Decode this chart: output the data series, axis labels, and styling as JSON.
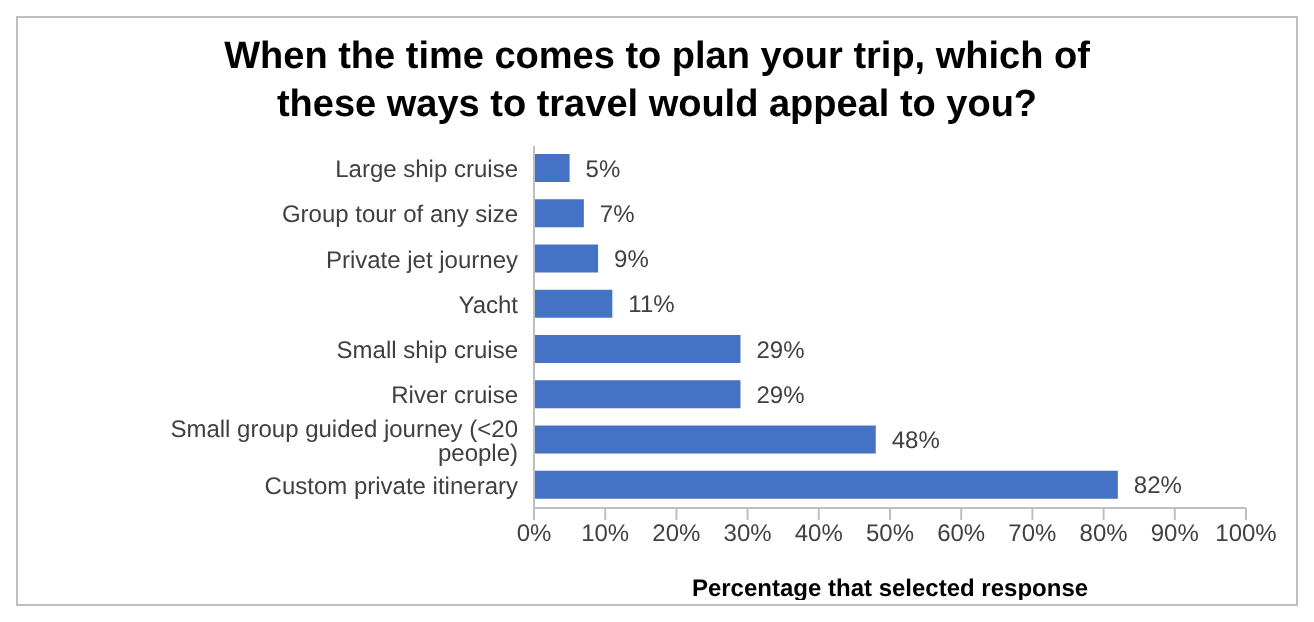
{
  "chart_data": {
    "type": "bar",
    "orientation": "horizontal",
    "title": "When the time comes to plan your trip, which of these ways to travel would appeal to you?",
    "xlabel": "Percentage that selected response",
    "categories": [
      "Large ship cruise",
      "Group tour of any size",
      "Private jet journey",
      "Yacht",
      "Small ship cruise",
      "River cruise",
      "Small group guided journey (<20 people)",
      "Custom private itinerary"
    ],
    "values": [
      5,
      7,
      9,
      11,
      29,
      29,
      48,
      82
    ],
    "value_labels": [
      "5%",
      "7%",
      "9%",
      "11%",
      "29%",
      "29%",
      "48%",
      "82%"
    ],
    "color": "#4472c4",
    "xlim": [
      0,
      100
    ],
    "xticks": [
      {
        "value": 0,
        "label": "0%"
      },
      {
        "value": 10,
        "label": "10%"
      },
      {
        "value": 20,
        "label": "20%"
      },
      {
        "value": 30,
        "label": "30%"
      },
      {
        "value": 40,
        "label": "40%"
      },
      {
        "value": 50,
        "label": "50%"
      },
      {
        "value": 60,
        "label": "60%"
      },
      {
        "value": 70,
        "label": "70%"
      },
      {
        "value": 80,
        "label": "80%"
      },
      {
        "value": 90,
        "label": "90%"
      },
      {
        "value": 100,
        "label": "100%"
      }
    ],
    "grid": false,
    "legend": false
  }
}
